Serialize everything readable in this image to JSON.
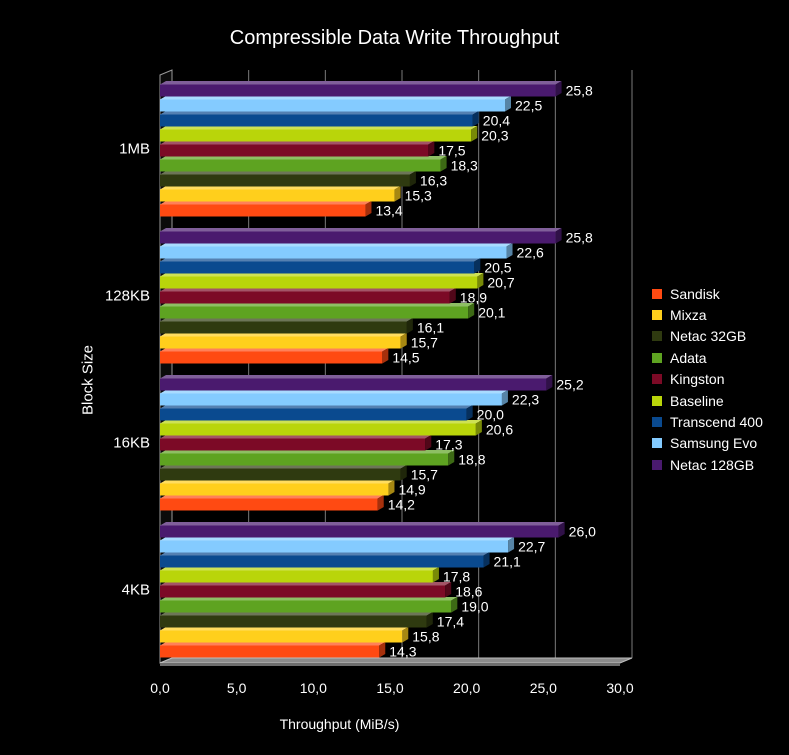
{
  "chart_data": {
    "type": "bar",
    "orientation": "horizontal",
    "title": "Compressible Data Write Throughput",
    "xlabel": "Throughput (MiB/s)",
    "ylabel": "Block Size",
    "xlim": [
      0,
      30
    ],
    "xticks": [
      "0,0",
      "5,0",
      "10,0",
      "15,0",
      "20,0",
      "25,0",
      "30,0"
    ],
    "grid": true,
    "legend_position": "right",
    "categories": [
      "1MB",
      "128KB",
      "16KB",
      "4KB"
    ],
    "series": [
      {
        "name": "Sandisk",
        "color": "#ff4a12",
        "values": [
          13.4,
          14.5,
          14.2,
          14.3
        ],
        "labels": [
          "13,4",
          "14,5",
          "14,2",
          "14,3"
        ]
      },
      {
        "name": "Mixza",
        "color": "#ffcf1c",
        "values": [
          15.3,
          15.7,
          14.9,
          15.8
        ],
        "labels": [
          "15,3",
          "15,7",
          "14,9",
          "15,8"
        ]
      },
      {
        "name": "Netac 32GB",
        "color": "#2f3a10",
        "values": [
          16.3,
          16.1,
          15.7,
          17.4
        ],
        "labels": [
          "16,3",
          "16,1",
          "15,7",
          "17,4"
        ]
      },
      {
        "name": "Adata",
        "color": "#5ea321",
        "values": [
          18.3,
          20.1,
          18.8,
          19.0
        ],
        "labels": [
          "18,3",
          "20,1",
          "18,8",
          "19,0"
        ]
      },
      {
        "name": "Kingston",
        "color": "#7c0a26",
        "values": [
          17.5,
          18.9,
          17.3,
          18.6
        ],
        "labels": [
          "17,5",
          "18,9",
          "17,3",
          "18,6"
        ]
      },
      {
        "name": "Baseline",
        "color": "#b9d50a",
        "values": [
          20.3,
          20.7,
          20.6,
          17.8
        ],
        "labels": [
          "20,3",
          "20,7",
          "20,6",
          "17,8"
        ]
      },
      {
        "name": "Transcend 400",
        "color": "#0a4a8f",
        "values": [
          20.4,
          20.5,
          20.0,
          21.1
        ],
        "labels": [
          "20,4",
          "20,5",
          "20,0",
          "21,1"
        ]
      },
      {
        "name": "Samsung Evo",
        "color": "#84cbff",
        "values": [
          22.5,
          22.6,
          22.3,
          22.7
        ],
        "labels": [
          "22,5",
          "22,6",
          "22,3",
          "22,7"
        ]
      },
      {
        "name": "Netac 128GB",
        "color": "#4a1a6e",
        "values": [
          25.8,
          25.8,
          25.2,
          26.0
        ],
        "labels": [
          "25,8",
          "25,8",
          "25,2",
          "26,0"
        ]
      }
    ]
  }
}
